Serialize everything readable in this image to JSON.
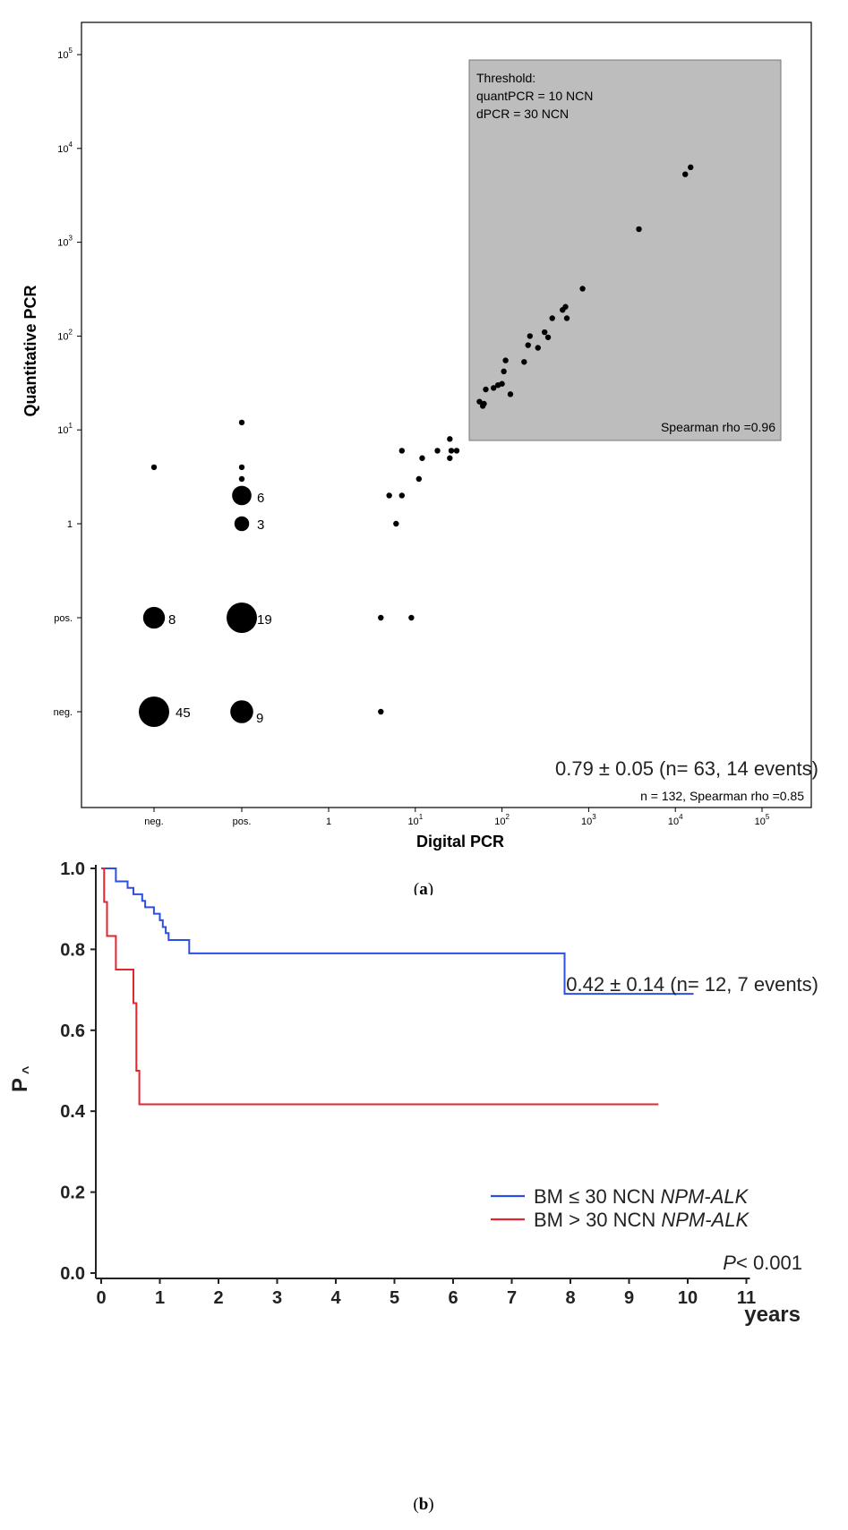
{
  "chart_data": [
    {
      "type": "scatter",
      "panel_label": "a",
      "xlabel": "Digital PCR",
      "ylabel": "Quantitative PCR",
      "x_ticks": [
        "neg.",
        "pos.",
        "1",
        "10",
        "10",
        "10",
        "10",
        "10"
      ],
      "x_tick_exponents": [
        "",
        "",
        "",
        "1",
        "2",
        "3",
        "4",
        "5"
      ],
      "y_ticks": [
        "neg.",
        "pos.",
        "1",
        "10",
        "10",
        "10",
        "10",
        "10"
      ],
      "y_tick_exponents": [
        "",
        "",
        "",
        "1",
        "2",
        "3",
        "4",
        "5"
      ],
      "scale_note": "Both axes: categorical 'neg.' and 'pos.' positions followed by log10 scale from 1 to 10^5",
      "threshold_box": {
        "title": "Threshold:",
        "line1": "quantPCR = 10 NCN",
        "line2": "dPCR = 30 NCN",
        "stat": "Spearman  rho =0.96"
      },
      "overall_stat": "n =  132, Spearman  rho =0.85",
      "count_labels": [
        "45",
        "9",
        "8",
        "19",
        "6",
        "3"
      ],
      "points": [
        {
          "x": "neg.",
          "y": "neg.",
          "count": 45
        },
        {
          "x": "pos.",
          "y": "neg.",
          "count": 9
        },
        {
          "x": "neg.",
          "y": "pos.",
          "count": 8
        },
        {
          "x": "pos.",
          "y": "pos.",
          "count": 19
        },
        {
          "x": "pos.",
          "y": 2,
          "count": 6
        },
        {
          "x": "pos.",
          "y": 1,
          "count": 3
        },
        {
          "x": "neg.",
          "y": 4,
          "count": 1
        },
        {
          "x": "pos.",
          "y": 4,
          "count": 1
        },
        {
          "x": "pos.",
          "y": 3,
          "count": 1
        },
        {
          "x": "pos.",
          "y": 12,
          "count": 1
        },
        {
          "x": 4,
          "y": "pos.",
          "count": 1
        },
        {
          "x": 9,
          "y": "pos.",
          "count": 1
        },
        {
          "x": 4,
          "y": "neg.",
          "count": 1
        },
        {
          "x": 5,
          "y": 2,
          "count": 1
        },
        {
          "x": 6,
          "y": 1,
          "count": 1
        },
        {
          "x": 7,
          "y": 2,
          "count": 1
        },
        {
          "x": 7,
          "y": 6,
          "count": 1
        },
        {
          "x": 11,
          "y": 3,
          "count": 1
        },
        {
          "x": 12,
          "y": 5,
          "count": 1
        },
        {
          "x": 18,
          "y": 6,
          "count": 1
        },
        {
          "x": 25,
          "y": 8,
          "count": 1
        },
        {
          "x": 25,
          "y": 5,
          "count": 1
        },
        {
          "x": 26,
          "y": 6,
          "count": 1
        },
        {
          "x": 30,
          "y": 6,
          "count": 1
        },
        {
          "x": 55,
          "y": 20,
          "count": 1
        },
        {
          "x": 60,
          "y": 18,
          "count": 1
        },
        {
          "x": 62,
          "y": 19,
          "count": 1
        },
        {
          "x": 65,
          "y": 27,
          "count": 1
        },
        {
          "x": 80,
          "y": 28,
          "count": 1
        },
        {
          "x": 90,
          "y": 30,
          "count": 1
        },
        {
          "x": 100,
          "y": 31,
          "count": 1
        },
        {
          "x": 105,
          "y": 42,
          "count": 1
        },
        {
          "x": 110,
          "y": 55,
          "count": 1
        },
        {
          "x": 125,
          "y": 24,
          "count": 1
        },
        {
          "x": 180,
          "y": 53,
          "count": 1
        },
        {
          "x": 200,
          "y": 80,
          "count": 1
        },
        {
          "x": 210,
          "y": 100,
          "count": 1
        },
        {
          "x": 260,
          "y": 75,
          "count": 1
        },
        {
          "x": 310,
          "y": 110,
          "count": 1
        },
        {
          "x": 340,
          "y": 97,
          "count": 1
        },
        {
          "x": 380,
          "y": 155,
          "count": 1
        },
        {
          "x": 500,
          "y": 190,
          "count": 1
        },
        {
          "x": 540,
          "y": 205,
          "count": 1
        },
        {
          "x": 560,
          "y": 155,
          "count": 1
        },
        {
          "x": 850,
          "y": 320,
          "count": 1
        },
        {
          "x": 3800,
          "y": 1380,
          "count": 1
        },
        {
          "x": 13000,
          "y": 5300,
          "count": 1
        },
        {
          "x": 15000,
          "y": 6300,
          "count": 1
        }
      ]
    },
    {
      "type": "line",
      "subtype": "kaplan-meier step",
      "panel_label": "b",
      "xlabel": "years",
      "ylabel": "P",
      "x_ticks": [
        "0",
        "1",
        "2",
        "3",
        "4",
        "5",
        "6",
        "7",
        "8",
        "9",
        "10",
        "11"
      ],
      "y_ticks": [
        "0.0",
        "0.2",
        "0.4",
        "0.6",
        "0.8",
        "1.0"
      ],
      "xlim": [
        0,
        11
      ],
      "ylim": [
        0,
        1
      ],
      "p_value_label": "P",
      "p_value": "< 0.001",
      "series": [
        {
          "name": "BM ≤ 30 NCN",
          "name_italic": "NPM-ALK",
          "color": "#2c4fe0",
          "annotation": "0.79 ± 0.05 (n= 63, 14 events)",
          "points": [
            [
              0,
              1.0
            ],
            [
              0.25,
              1.0
            ],
            [
              0.25,
              0.968
            ],
            [
              0.45,
              0.968
            ],
            [
              0.45,
              0.952
            ],
            [
              0.55,
              0.952
            ],
            [
              0.55,
              0.936
            ],
            [
              0.7,
              0.936
            ],
            [
              0.7,
              0.92
            ],
            [
              0.75,
              0.92
            ],
            [
              0.75,
              0.904
            ],
            [
              0.9,
              0.904
            ],
            [
              0.9,
              0.888
            ],
            [
              1.0,
              0.888
            ],
            [
              1.0,
              0.872
            ],
            [
              1.05,
              0.872
            ],
            [
              1.05,
              0.855
            ],
            [
              1.1,
              0.855
            ],
            [
              1.1,
              0.84
            ],
            [
              1.15,
              0.84
            ],
            [
              1.15,
              0.823
            ],
            [
              1.5,
              0.823
            ],
            [
              1.5,
              0.79
            ],
            [
              7.9,
              0.79
            ],
            [
              7.9,
              0.69
            ],
            [
              10.1,
              0.69
            ]
          ]
        },
        {
          "name": "BM > 30 NCN",
          "name_italic": "NPM-ALK",
          "color": "#e2252f",
          "annotation": "0.42 ± 0.14 (n= 12,  7 events)",
          "points": [
            [
              0,
              1.0
            ],
            [
              0.05,
              1.0
            ],
            [
              0.05,
              0.917
            ],
            [
              0.1,
              0.917
            ],
            [
              0.1,
              0.833
            ],
            [
              0.25,
              0.833
            ],
            [
              0.25,
              0.75
            ],
            [
              0.55,
              0.75
            ],
            [
              0.55,
              0.667
            ],
            [
              0.6,
              0.667
            ],
            [
              0.6,
              0.5
            ],
            [
              0.65,
              0.5
            ],
            [
              0.65,
              0.417
            ],
            [
              9.5,
              0.417
            ]
          ]
        }
      ]
    }
  ]
}
